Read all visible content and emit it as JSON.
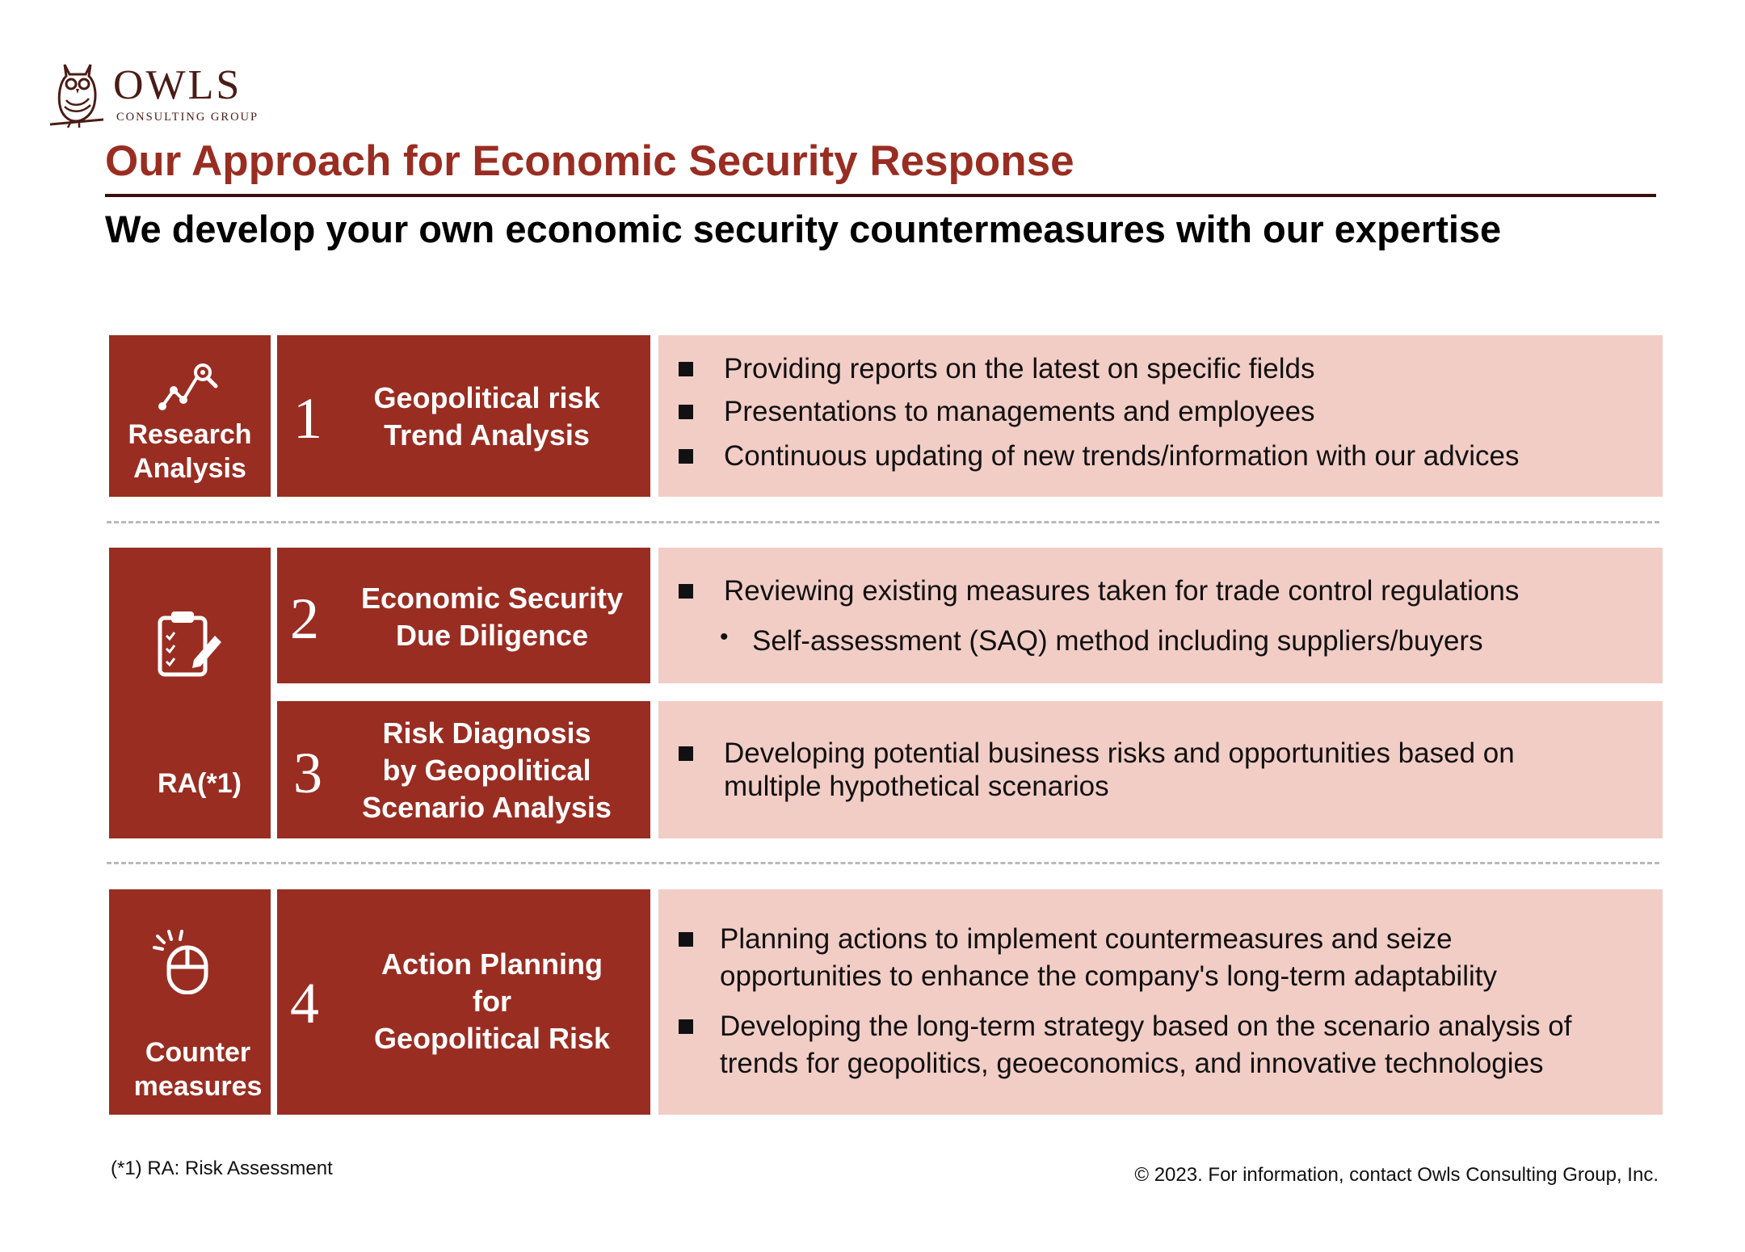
{
  "logo": {
    "name": "OWLS",
    "sub": "CONSULTING GROUP"
  },
  "title": "Our Approach for Economic Security Response",
  "subtitle": "We develop your own economic security countermeasures with our expertise",
  "categories": [
    {
      "label_line1": "Research",
      "label_line2": "Analysis",
      "icon": "chart-search-icon"
    },
    {
      "label": "RA(*1)",
      "icon": "clipboard-checklist-icon"
    },
    {
      "label_line1": "Counter",
      "label_line2": "measures",
      "icon": "mouse-click-icon"
    }
  ],
  "steps": [
    {
      "number": "1",
      "title_line1": "Geopolitical risk",
      "title_line2": "Trend Analysis"
    },
    {
      "number": "2",
      "title_line1": "Economic Security",
      "title_line2": "Due Diligence"
    },
    {
      "number": "3",
      "title_line1": "Risk Diagnosis",
      "title_line2": "by Geopolitical",
      "title_line3": "Scenario Analysis"
    },
    {
      "number": "4",
      "title_line1": "Action Planning",
      "title_line2": "for",
      "title_line3": "Geopolitical Risk"
    }
  ],
  "descriptions": {
    "step1": [
      "Providing reports on the latest on specific fields",
      "Presentations to managements and employees",
      "Continuous updating of new trends/information with our advices"
    ],
    "step2": {
      "bullet": "Reviewing existing measures taken for trade control regulations",
      "sub_bullet": "Self-assessment (SAQ) method including suppliers/buyers"
    },
    "step3": {
      "line1": "Developing potential business risks and opportunities based on",
      "line2": "multiple hypothetical scenarios"
    },
    "step4": [
      {
        "line1": "Planning actions to implement countermeasures and seize",
        "line2": "opportunities to enhance the company's long-term adaptability"
      },
      {
        "line1": "Developing the long-term strategy based on the scenario analysis of",
        "line2": "trends for geopolitics, geoeconomics, and innovative technologies"
      }
    ]
  },
  "footnote": "(*1) RA: Risk Assessment",
  "copyright": "© 2023. For information, contact Owls Consulting Group, Inc."
}
